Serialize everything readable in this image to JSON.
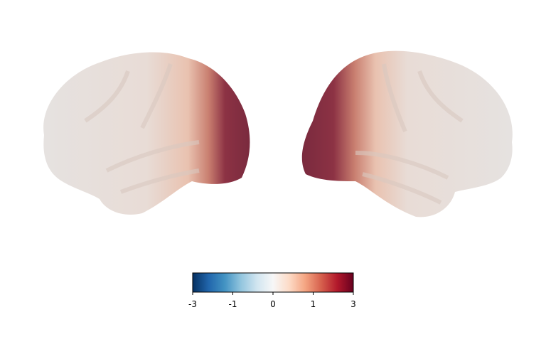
{
  "colorbar": {
    "colormap": "RdBu_r",
    "ticks": [
      "-3",
      "-1",
      "0",
      "1",
      "3"
    ]
  }
}
